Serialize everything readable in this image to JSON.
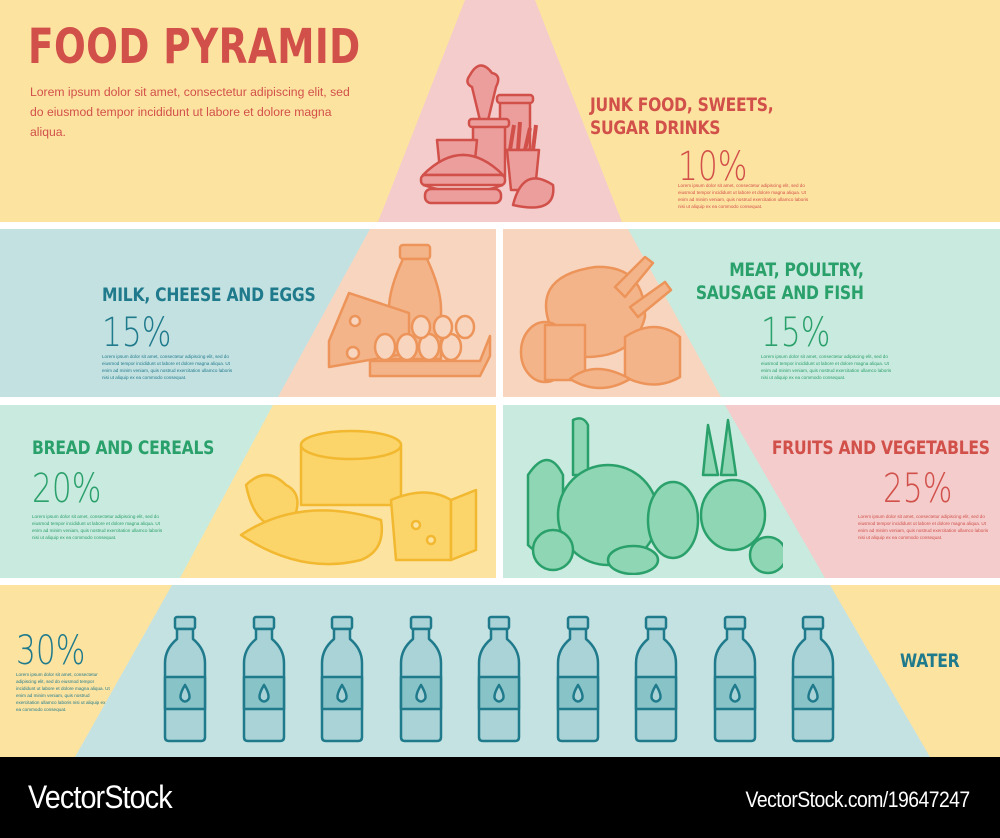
{
  "header": {
    "title": "FOOD PYRAMID",
    "intro": "Lorem ipsum dolor sit amet, consectetur adipiscing elit, sed do eiusmod tempor incididunt ut labore et dolore magna aliqua."
  },
  "placeholder_text": "Lorem ipsum dolor sit amet, consectetur adipiscing elit, sed do eiusmod tempor incididunt ut labore et dolore magna aliqua. Ut enim ad minim veniam, quis nostrud exercitation ullamco laboris nisi ut aliquip ex ea commodo consequat.",
  "tiers": [
    {
      "id": "junk",
      "label_line1": "JUNK FOOD, SWEETS,",
      "label_line2": "SUGAR DRINKS",
      "percent": "10%",
      "icon": "fast-food-icon",
      "color": "#d2504a"
    },
    {
      "id": "dairy",
      "label_line1": "MILK, CHEESE AND EGGS",
      "percent": "15%",
      "icon": "dairy-icon",
      "color": "#1f7a8c"
    },
    {
      "id": "meat",
      "label_line1": "MEAT, POULTRY,",
      "label_line2": "SAUSAGE AND FISH",
      "percent": "15%",
      "icon": "meat-icon",
      "color": "#2aa06b"
    },
    {
      "id": "bread",
      "label_line1": "BREAD AND CEREALS",
      "percent": "20%",
      "icon": "bread-icon",
      "color": "#2aa06b"
    },
    {
      "id": "fruits",
      "label_line1": "FRUITS AND VEGETABLES",
      "percent": "25%",
      "icon": "fruits-vegetables-icon",
      "color": "#d2504a"
    },
    {
      "id": "water",
      "label_line1": "WATER",
      "percent": "30%",
      "icon": "water-bottle-icon",
      "color": "#1f7a8c",
      "bottle_count": 9
    }
  ],
  "colors": {
    "yellow": "#fde3a0",
    "pink": "#f3cccb",
    "peach": "#f8d5bf",
    "teal_light": "#c3e1e1",
    "mint": "#c9eadf",
    "blue_light": "#c5e2e2"
  },
  "footer": {
    "brand": "VectorStock",
    "url": "VectorStock.com/19647247"
  }
}
